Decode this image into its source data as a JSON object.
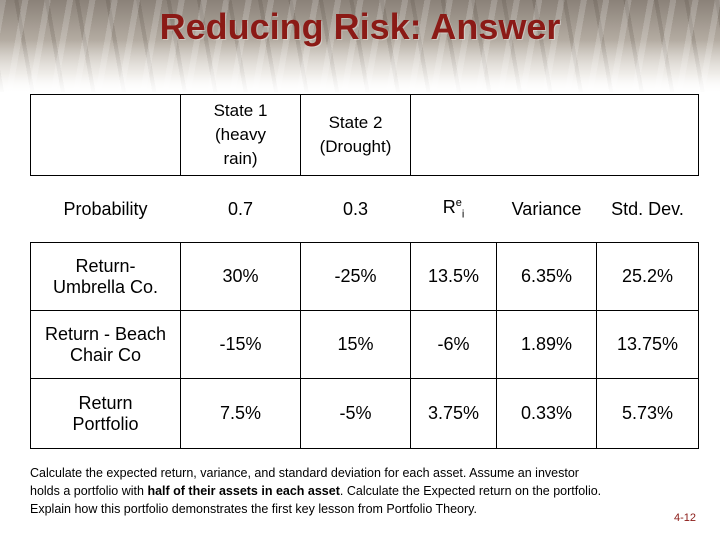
{
  "title": "Reducing Risk: Answer",
  "table": {
    "header": {
      "state1": "State 1",
      "state1_sub": "(heavy",
      "state1_sub2": "rain)",
      "state2": "State 2",
      "state2_sub": "(Drought)"
    },
    "probability_row": {
      "label": "Probability",
      "state1": "0.7",
      "state2": "0.3",
      "re_base": "R",
      "re_sup": "e",
      "re_sub": "i",
      "variance_label": "Variance",
      "stddev_label": "Std. Dev."
    },
    "rows": [
      {
        "label_line1": "Return-",
        "label_line2": "Umbrella Co.",
        "state1": "30%",
        "state2": "-25%",
        "expected": "13.5%",
        "variance": "6.35%",
        "stddev": "25.2%"
      },
      {
        "label_line1": "Return - Beach",
        "label_line2": "Chair Co",
        "state1": "-15%",
        "state2": "15%",
        "expected": "-6%",
        "variance": "1.89%",
        "stddev": "13.75%"
      },
      {
        "label_line1": "Return",
        "label_line2": "Portfolio",
        "state1": "7.5%",
        "state2": "-5%",
        "expected": "3.75%",
        "variance": "0.33%",
        "stddev": "5.73%"
      }
    ]
  },
  "caption": {
    "part1": "Calculate the expected return, variance, and standard deviation for each asset.  Assume an investor holds a portfolio with ",
    "bold": "half of their assets in each asset",
    "part2": ".  Calculate the Expected return on the portfolio. Explain how this portfolio demonstrates the first key lesson from Portfolio Theory."
  },
  "page_number": "4-12",
  "colors": {
    "title": "#8b1a16",
    "page_number": "#8b1a16"
  }
}
